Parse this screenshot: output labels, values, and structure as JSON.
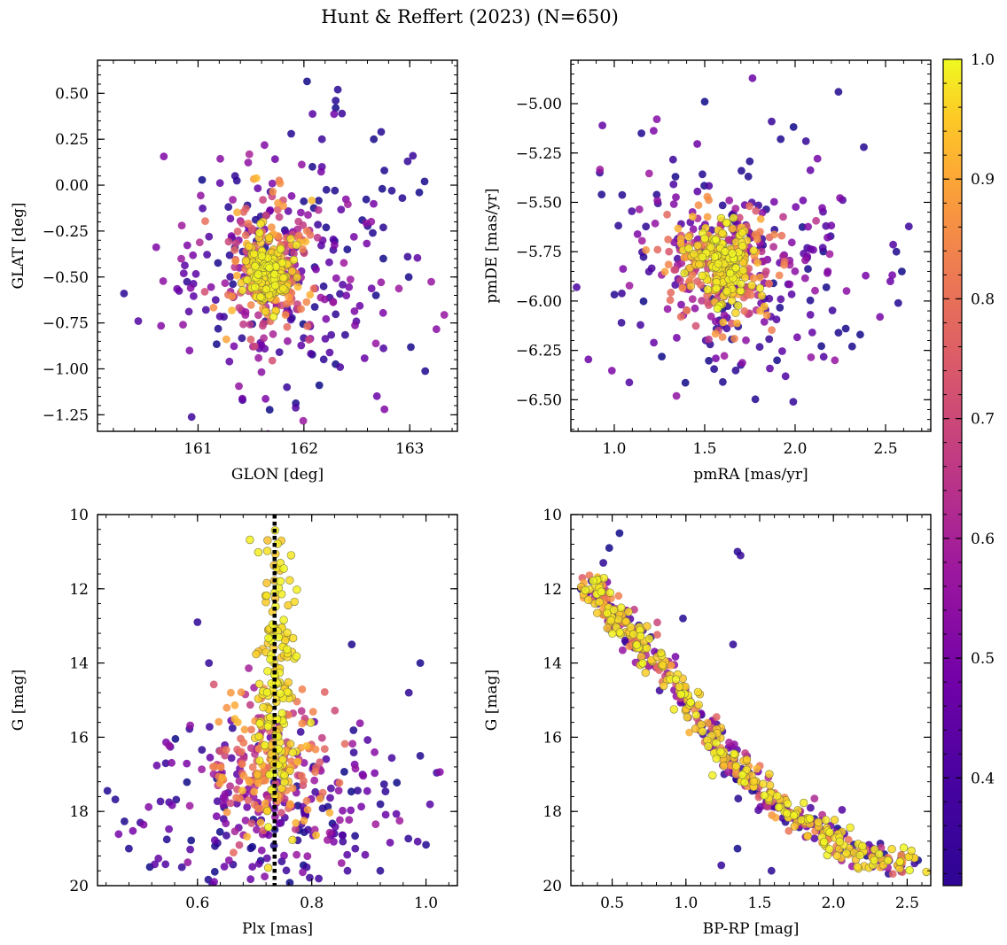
{
  "figure_title": "Hunt & Reffert (2023) (N=650)",
  "colors": {
    "scale": [
      "#0d0887",
      "#46039f",
      "#7201a8",
      "#9c179e",
      "#bd3786",
      "#d8576b",
      "#ed7953",
      "#fb9f3a",
      "#fdca26",
      "#f0f921"
    ],
    "guide_line": "#000000"
  },
  "chart_data": [
    {
      "id": "sky",
      "type": "scatter",
      "xlabel": "GLON [deg]",
      "ylabel": "GLAT [deg]",
      "xlim": [
        160.05,
        163.45
      ],
      "ylim": [
        -1.34,
        0.68
      ],
      "invert_y": false,
      "xticks": [
        161,
        162,
        163
      ],
      "xtick_labels": [
        "161",
        "162",
        "163"
      ],
      "yticks": [
        -1.25,
        -1.0,
        -0.75,
        -0.5,
        -0.25,
        0.0,
        0.25,
        0.5
      ],
      "ytick_labels": [
        "−1.25",
        "−1.00",
        "−0.75",
        "−0.50",
        "−0.25",
        "0.00",
        "0.25",
        "0.50"
      ],
      "cluster": {
        "center": [
          161.65,
          -0.47
        ],
        "sigma": [
          0.09,
          0.09
        ],
        "probability": [
          0.9,
          1.0
        ]
      },
      "members": {
        "center": [
          161.7,
          -0.46
        ],
        "sigma": [
          0.22,
          0.18
        ],
        "probability": [
          0.55,
          0.9
        ]
      },
      "field": {
        "center": [
          161.8,
          -0.45
        ],
        "sigma": [
          0.55,
          0.35
        ],
        "probability": [
          0.3,
          0.55
        ]
      },
      "outliers": [
        [
          162.32,
          0.52
        ],
        [
          162.3,
          0.46
        ],
        [
          162.36,
          0.39
        ],
        [
          162.3,
          0.42
        ],
        [
          161.88,
          0.28
        ],
        [
          162.17,
          0.25
        ],
        [
          162.66,
          0.25
        ],
        [
          162.73,
          0.29
        ],
        [
          162.76,
          0.08
        ],
        [
          163.03,
          0.16
        ],
        [
          162.98,
          0.13
        ],
        [
          163.14,
          0.02
        ],
        [
          163.09,
          -0.04
        ],
        [
          162.93,
          -0.07
        ],
        [
          162.74,
          -0.02
        ],
        [
          162.83,
          -0.03
        ],
        [
          160.3,
          -0.59
        ],
        [
          161.42,
          -1.17
        ],
        [
          161.84,
          -1.1
        ],
        [
          162.75,
          -0.23
        ],
        [
          162.65,
          -0.26
        ],
        [
          162.75,
          -0.4
        ],
        [
          162.98,
          -0.39
        ],
        [
          162.99,
          -0.5
        ],
        [
          162.68,
          -0.6
        ],
        [
          162.08,
          0.1
        ],
        [
          161.35,
          0.05
        ],
        [
          162.21,
          -0.23
        ],
        [
          162.41,
          -0.35
        ]
      ]
    },
    {
      "id": "pm",
      "type": "scatter",
      "xlabel": "pmRA [mas/yr]",
      "ylabel": "pmDE [mas/yr]",
      "xlim": [
        0.76,
        2.75
      ],
      "ylim": [
        -6.66,
        -4.78
      ],
      "invert_y": false,
      "xticks": [
        1.0,
        1.5,
        2.0,
        2.5
      ],
      "xtick_labels": [
        "1.0",
        "1.5",
        "2.0",
        "2.5"
      ],
      "yticks": [
        -6.5,
        -6.25,
        -6.0,
        -5.75,
        -5.5,
        -5.25,
        -5.0
      ],
      "ytick_labels": [
        "−6.50",
        "−6.25",
        "−6.00",
        "−5.75",
        "−5.50",
        "−5.25",
        "−5.00"
      ],
      "cluster": {
        "center": [
          1.6,
          -5.82
        ],
        "sigma": [
          0.09,
          0.09
        ],
        "probability": [
          0.9,
          1.0
        ]
      },
      "members": {
        "center": [
          1.62,
          -5.82
        ],
        "sigma": [
          0.16,
          0.16
        ],
        "probability": [
          0.55,
          0.9
        ]
      },
      "field": {
        "center": [
          1.65,
          -5.8
        ],
        "sigma": [
          0.4,
          0.3
        ],
        "probability": [
          0.3,
          0.55
        ]
      },
      "outliers": [
        [
          2.24,
          -4.94
        ],
        [
          1.5,
          -4.99
        ],
        [
          1.87,
          -5.09
        ],
        [
          1.15,
          -5.15
        ],
        [
          1.92,
          -5.18
        ],
        [
          2.06,
          -5.19
        ],
        [
          2.38,
          -5.22
        ],
        [
          0.92,
          -5.35
        ],
        [
          0.93,
          -5.46
        ],
        [
          1.99,
          -6.51
        ],
        [
          1.6,
          -6.41
        ],
        [
          1.04,
          -6.11
        ],
        [
          2.24,
          -6.16
        ],
        [
          2.36,
          -6.17
        ],
        [
          2.57,
          -6.01
        ],
        [
          2.59,
          -5.85
        ],
        [
          2.56,
          -5.75
        ],
        [
          1.53,
          -6.22
        ],
        [
          1.9,
          -6.3
        ]
      ]
    },
    {
      "id": "plx",
      "type": "scatter",
      "xlabel": "Plx [mas]",
      "ylabel": "G [mag]",
      "xlim": [
        0.425,
        1.055
      ],
      "ylim": [
        20.0,
        10.0
      ],
      "invert_y": true,
      "xticks": [
        0.6,
        0.8,
        1.0
      ],
      "xtick_labels": [
        "0.6",
        "0.8",
        "1.0"
      ],
      "yticks": [
        10,
        12,
        14,
        16,
        18,
        20
      ],
      "ytick_labels": [
        "10",
        "12",
        "14",
        "16",
        "18",
        "20"
      ],
      "reference_line": {
        "x": 0.735,
        "style": "dotted"
      },
      "cluster": {
        "center": [
          0.74,
          14.5
        ],
        "sigma": [
          0.018,
          2.2
        ],
        "probability": [
          0.9,
          1.0
        ]
      },
      "members": {
        "center": [
          0.73,
          16.7
        ],
        "sigma": [
          0.05,
          1.0
        ],
        "probability": [
          0.55,
          0.9
        ]
      },
      "field": {
        "center": [
          0.72,
          17.9
        ],
        "sigma": [
          0.12,
          1.1
        ],
        "probability": [
          0.3,
          0.55
        ]
      },
      "outliers": [
        [
          0.6,
          12.9
        ],
        [
          0.62,
          14.0
        ],
        [
          0.87,
          13.5
        ],
        [
          0.99,
          14.0
        ],
        [
          0.97,
          14.8
        ],
        [
          0.99,
          16.5
        ],
        [
          1.0,
          18.9
        ],
        [
          0.5,
          18.3
        ],
        [
          0.92,
          19.6
        ],
        [
          0.48,
          19.0
        ]
      ]
    },
    {
      "id": "cmd",
      "type": "scatter",
      "xlabel": "BP-RP [mag]",
      "ylabel": "G [mag]",
      "xlim": [
        0.22,
        2.66
      ],
      "ylim": [
        20.0,
        10.0
      ],
      "invert_y": true,
      "xticks": [
        0.5,
        1.0,
        1.5,
        2.0,
        2.5
      ],
      "xtick_labels": [
        "0.5",
        "1.0",
        "1.5",
        "2.0",
        "2.5"
      ],
      "yticks": [
        10,
        12,
        14,
        16,
        18,
        20
      ],
      "ytick_labels": [
        "10",
        "12",
        "14",
        "16",
        "18",
        "20"
      ],
      "sequence": [
        [
          0.33,
          11.7
        ],
        [
          0.45,
          12.4
        ],
        [
          0.55,
          13.0
        ],
        [
          0.7,
          13.4
        ],
        [
          0.85,
          14.1
        ],
        [
          1.0,
          15.0
        ],
        [
          1.15,
          15.9
        ],
        [
          1.3,
          16.6
        ],
        [
          1.5,
          17.4
        ],
        [
          1.7,
          18.0
        ],
        [
          1.9,
          18.5
        ],
        [
          2.1,
          19.0
        ],
        [
          2.3,
          19.3
        ],
        [
          2.55,
          19.45
        ]
      ],
      "outliers": [
        [
          0.55,
          10.5
        ],
        [
          0.48,
          10.9
        ],
        [
          0.44,
          11.3
        ],
        [
          1.35,
          11.0
        ],
        [
          1.37,
          11.1
        ],
        [
          1.32,
          13.5
        ],
        [
          0.98,
          12.8
        ],
        [
          1.35,
          19.0
        ],
        [
          1.24,
          19.45
        ],
        [
          1.58,
          19.6
        ],
        [
          2.55,
          19.4
        ]
      ]
    }
  ],
  "colorbar": {
    "label_range": [
      0.31,
      1.0
    ],
    "ticks": [
      0.4,
      0.5,
      0.6,
      0.7,
      0.8,
      0.9,
      1.0
    ],
    "tick_labels": [
      "0.4",
      "0.5",
      "0.6",
      "0.7",
      "0.8",
      "0.9",
      "1.0"
    ]
  }
}
